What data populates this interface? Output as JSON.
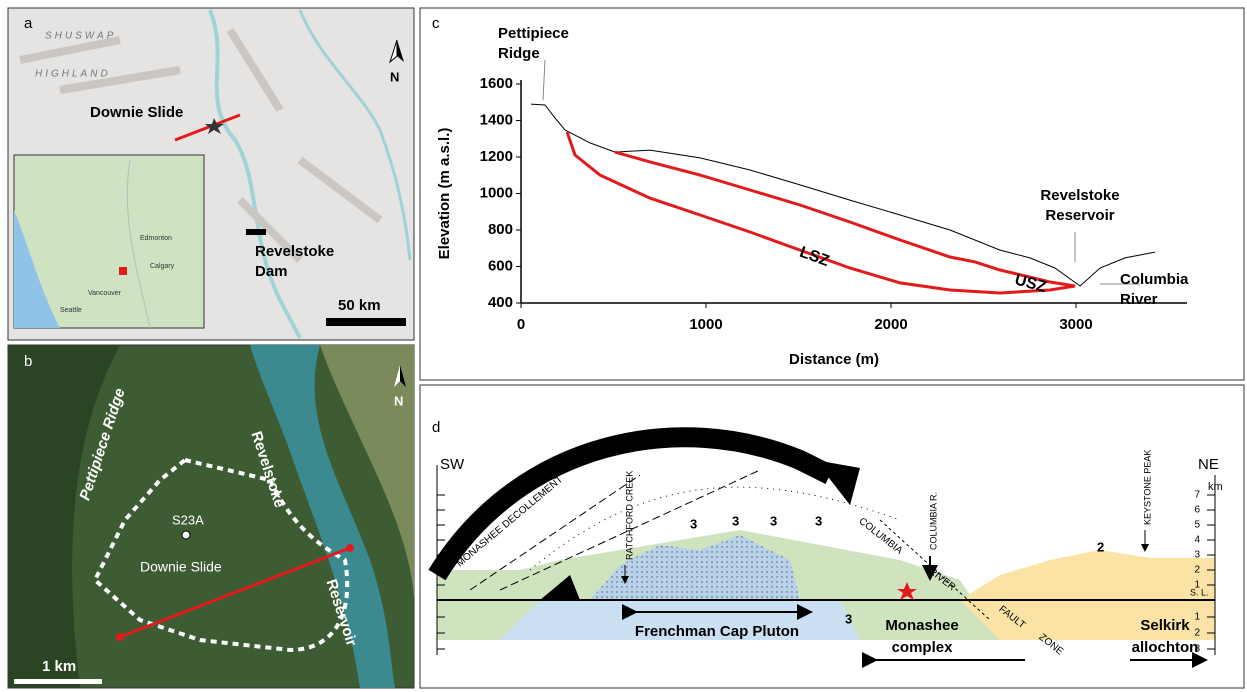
{
  "chart_data": {
    "type": "line",
    "panel_label": "c",
    "xlabel": "Distance (m)",
    "ylabel": "Elevation (m a.s.l.)",
    "xlim": [
      0,
      3600
    ],
    "ylim": [
      400,
      1600
    ],
    "xticks": [
      0,
      1000,
      2000,
      3000
    ],
    "yticks": [
      400,
      600,
      800,
      1000,
      1200,
      1400,
      1600
    ],
    "series": [
      {
        "color": "#000000",
        "x": [
          54,
          130,
          184,
          238,
          373,
          508,
          697,
          968,
          1238,
          1508,
          1778,
          2049,
          2319,
          2589,
          2751,
          2886,
          3022,
          3130,
          3265,
          3427
        ],
        "values": [
          1490,
          1485,
          1414,
          1348,
          1277,
          1227,
          1238,
          1195,
          1129,
          1047,
          964,
          882,
          800,
          690,
          647,
          592,
          493,
          592,
          647,
          679
        ]
      },
      {
        "name": "LSZ",
        "color": "#e31a1c",
        "x": [
          249,
          292,
          427,
          697,
          968,
          1238,
          1508,
          1778,
          2049,
          2319,
          2589,
          2859,
          2995
        ],
        "values": [
          1337,
          1211,
          1101,
          975,
          882,
          789,
          690,
          592,
          510,
          471,
          455,
          471,
          493
        ]
      },
      {
        "name": "USZ",
        "color": "#e31a1c",
        "x": [
          508,
          697,
          968,
          1238,
          1508,
          1778,
          2049,
          2319,
          2454,
          2589,
          2859,
          2995
        ],
        "values": [
          1227,
          1173,
          1101,
          1019,
          937,
          844,
          745,
          652,
          625,
          581,
          515,
          493
        ]
      }
    ],
    "annotations": [
      [
        "Pettipiece",
        "Ridge"
      ],
      [
        "Revelstoke",
        "Reservoir"
      ],
      [
        "Columbia",
        "River"
      ]
    ]
  },
  "panels": {
    "a": {
      "label": "a",
      "regions": [
        "SHUSWAP",
        "HIGHLAND"
      ],
      "site": "Downie Slide",
      "dam": [
        "Revelstoke",
        "Dam"
      ],
      "north": "N",
      "scale": "50 km",
      "inset_cities": [
        "Edmonton",
        "Calgary",
        "Vancouver",
        "Seattle"
      ]
    },
    "b": {
      "label": "b",
      "ridge": "Pettipiece Ridge",
      "reservoir": [
        "Revelstoke",
        "Reservoir"
      ],
      "borehole": "S23A",
      "site": "Downie Slide",
      "north": "N",
      "scale": "1 km"
    },
    "d": {
      "label": "d",
      "sw": "SW",
      "ne": "NE",
      "unit": "km",
      "above_ticks": [
        7,
        6,
        5,
        4,
        3,
        2,
        1
      ],
      "sea_level": "S. L.",
      "below_ticks": [
        1,
        2,
        3
      ],
      "features": [
        "MONASHEE DECOLLEMENT",
        "RATCHFORD CREEK",
        "COLUMBIA R.",
        "COLUMBIA",
        "RIVER",
        "FAULT",
        "ZONE",
        "KEYSTONE PEAK"
      ],
      "units": [
        "Frenchman Cap Pluton",
        [
          "Monashee",
          "complex"
        ],
        [
          "Selkirk",
          "allochton"
        ]
      ],
      "fold_marks": [
        "3",
        "3",
        "3",
        "3",
        "3",
        "2"
      ]
    }
  }
}
